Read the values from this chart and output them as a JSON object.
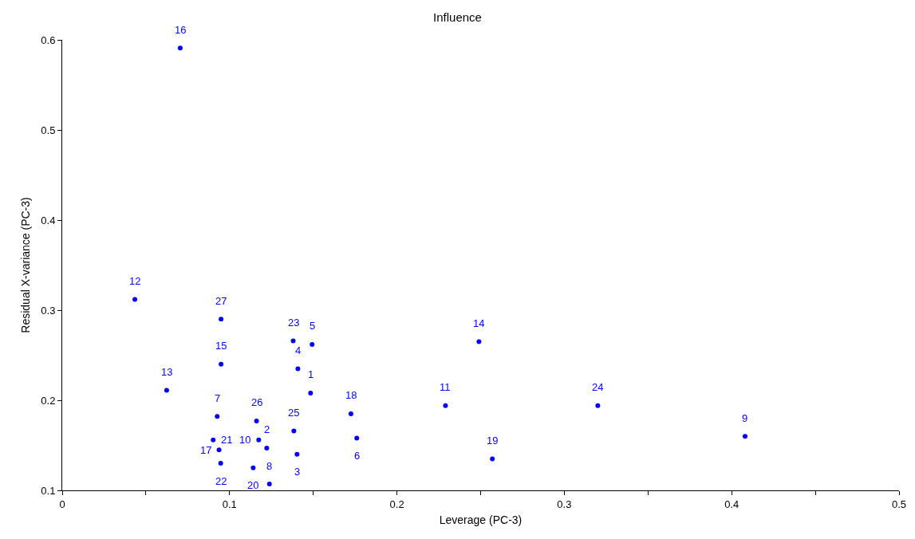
{
  "chart_data": {
    "type": "scatter",
    "title": "Influence",
    "xlabel": "Leverage (PC-3)",
    "ylabel": "Residual X-variance (PC-3)",
    "xlim": [
      0,
      0.5
    ],
    "ylim": [
      0.1,
      0.6
    ],
    "xticks": [
      0,
      {
        "value": 0.05,
        "label": null
      },
      0.1,
      {
        "value": 0.15,
        "label": null
      },
      0.2,
      {
        "value": 0.25,
        "label": null
      },
      0.3,
      {
        "value": 0.35,
        "label": null
      },
      0.4,
      {
        "value": 0.45,
        "label": null
      },
      0.5
    ],
    "yticks": [
      0.1,
      0.2,
      0.3,
      0.4,
      0.5,
      0.6
    ],
    "grid": false,
    "marker": "circle",
    "series": [
      {
        "color": "#0000ff",
        "x": [
          0.1484,
          0.1222,
          0.1403,
          0.1408,
          0.1493,
          0.176,
          0.0926,
          0.1238,
          0.408,
          0.1174,
          0.229,
          0.0434,
          0.0624,
          0.249,
          0.0949,
          0.0705,
          0.0937,
          0.1725,
          0.257,
          0.1141,
          0.0902,
          0.0947,
          0.138,
          0.32,
          0.1384,
          0.1161,
          0.0949
        ],
        "values": [
          0.208,
          0.147,
          0.14,
          0.235,
          0.262,
          0.158,
          0.182,
          0.107,
          0.16,
          0.156,
          0.194,
          0.312,
          0.211,
          0.265,
          0.24,
          0.591,
          0.145,
          0.185,
          0.135,
          0.125,
          0.156,
          0.13,
          0.266,
          0.194,
          0.166,
          0.177,
          0.29
        ]
      }
    ],
    "annotations": [
      {
        "text": "1",
        "x": 0.1484,
        "y": 0.208
      },
      {
        "text": "2",
        "x": 0.1222,
        "y": 0.147
      },
      {
        "text": "3",
        "x": 0.1403,
        "y": 0.14
      },
      {
        "text": "4",
        "x": 0.1408,
        "y": 0.235
      },
      {
        "text": "5",
        "x": 0.1493,
        "y": 0.262
      },
      {
        "text": "6",
        "x": 0.176,
        "y": 0.158
      },
      {
        "text": "7",
        "x": 0.0926,
        "y": 0.182
      },
      {
        "text": "8",
        "x": 0.1238,
        "y": 0.107
      },
      {
        "text": "9",
        "x": 0.408,
        "y": 0.16
      },
      {
        "text": "10",
        "x": 0.1174,
        "y": 0.156
      },
      {
        "text": "11",
        "x": 0.229,
        "y": 0.194
      },
      {
        "text": "12",
        "x": 0.0434,
        "y": 0.312
      },
      {
        "text": "13",
        "x": 0.0624,
        "y": 0.211
      },
      {
        "text": "14",
        "x": 0.249,
        "y": 0.265
      },
      {
        "text": "15",
        "x": 0.0949,
        "y": 0.24
      },
      {
        "text": "16",
        "x": 0.0705,
        "y": 0.591
      },
      {
        "text": "17",
        "x": 0.0937,
        "y": 0.145
      },
      {
        "text": "18",
        "x": 0.1725,
        "y": 0.185
      },
      {
        "text": "19",
        "x": 0.257,
        "y": 0.135
      },
      {
        "text": "20",
        "x": 0.1141,
        "y": 0.125
      },
      {
        "text": "21",
        "x": 0.0902,
        "y": 0.156
      },
      {
        "text": "22",
        "x": 0.0947,
        "y": 0.13
      },
      {
        "text": "23",
        "x": 0.138,
        "y": 0.266
      },
      {
        "text": "24",
        "x": 0.32,
        "y": 0.194
      },
      {
        "text": "25",
        "x": 0.1384,
        "y": 0.166
      },
      {
        "text": "26",
        "x": 0.1161,
        "y": 0.177
      },
      {
        "text": "27",
        "x": 0.0949,
        "y": 0.29
      }
    ]
  }
}
